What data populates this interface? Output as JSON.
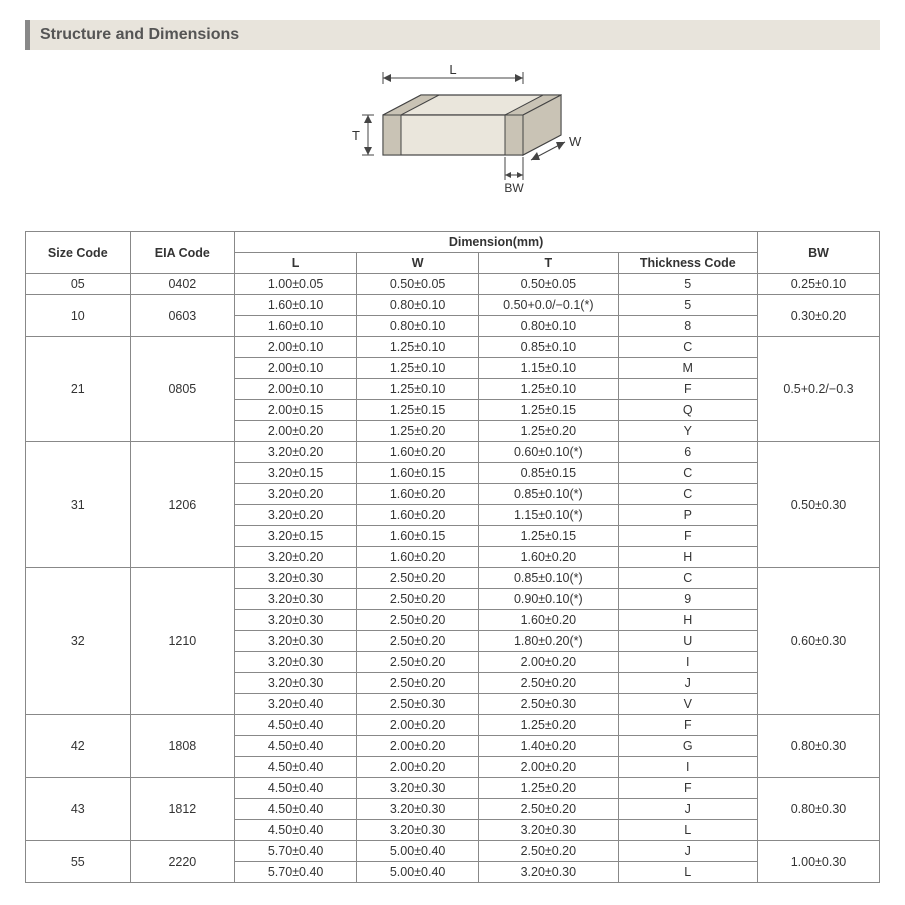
{
  "title": "Structure and Dimensions",
  "diagram": {
    "labels": {
      "L": "L",
      "W": "W",
      "T": "T",
      "BW": "BW"
    },
    "fill": "#eae6dc",
    "stroke": "#444",
    "endBandFill": "#c9c3b5"
  },
  "table": {
    "headers": {
      "size": "Size Code",
      "eia": "EIA Code",
      "dim": "Dimension(mm)",
      "L": "L",
      "W": "W",
      "T": "T",
      "tc": "Thickness  Code",
      "bw": "BW"
    },
    "groups": [
      {
        "size": "05",
        "eia": "0402",
        "bw": "0.25±0.10",
        "rows": [
          {
            "L": "1.00±0.05",
            "W": "0.50±0.05",
            "T": "0.50±0.05",
            "tc": "5"
          }
        ]
      },
      {
        "size": "10",
        "eia": "0603",
        "bw": "0.30±0.20",
        "rows": [
          {
            "L": "1.60±0.10",
            "W": "0.80±0.10",
            "T": "0.50+0.0/−0.1(*)",
            "tc": "5"
          },
          {
            "L": "1.60±0.10",
            "W": "0.80±0.10",
            "T": "0.80±0.10",
            "tc": "8"
          }
        ]
      },
      {
        "size": "21",
        "eia": "0805",
        "bw": "0.5+0.2/−0.3",
        "rows": [
          {
            "L": "2.00±0.10",
            "W": "1.25±0.10",
            "T": "0.85±0.10",
            "tc": "C"
          },
          {
            "L": "2.00±0.10",
            "W": "1.25±0.10",
            "T": "1.15±0.10",
            "tc": "M"
          },
          {
            "L": "2.00±0.10",
            "W": "1.25±0.10",
            "T": "1.25±0.10",
            "tc": "F"
          },
          {
            "L": "2.00±0.15",
            "W": "1.25±0.15",
            "T": "1.25±0.15",
            "tc": "Q"
          },
          {
            "L": "2.00±0.20",
            "W": "1.25±0.20",
            "T": "1.25±0.20",
            "tc": "Y"
          }
        ]
      },
      {
        "size": "31",
        "eia": "1206",
        "bw": "0.50±0.30",
        "rows": [
          {
            "L": "3.20±0.20",
            "W": "1.60±0.20",
            "T": "0.60±0.10(*)",
            "tc": "6"
          },
          {
            "L": "3.20±0.15",
            "W": "1.60±0.15",
            "T": "0.85±0.15",
            "tc": "C"
          },
          {
            "L": "3.20±0.20",
            "W": "1.60±0.20",
            "T": "0.85±0.10(*)",
            "tc": "C"
          },
          {
            "L": "3.20±0.20",
            "W": "1.60±0.20",
            "T": "1.15±0.10(*)",
            "tc": "P"
          },
          {
            "L": "3.20±0.15",
            "W": "1.60±0.15",
            "T": "1.25±0.15",
            "tc": "F"
          },
          {
            "L": "3.20±0.20",
            "W": "1.60±0.20",
            "T": "1.60±0.20",
            "tc": "H"
          }
        ]
      },
      {
        "size": "32",
        "eia": "1210",
        "bw": "0.60±0.30",
        "rows": [
          {
            "L": "3.20±0.30",
            "W": "2.50±0.20",
            "T": "0.85±0.10(*)",
            "tc": "C"
          },
          {
            "L": "3.20±0.30",
            "W": "2.50±0.20",
            "T": "0.90±0.10(*)",
            "tc": "9"
          },
          {
            "L": "3.20±0.30",
            "W": "2.50±0.20",
            "T": "1.60±0.20",
            "tc": "H"
          },
          {
            "L": "3.20±0.30",
            "W": "2.50±0.20",
            "T": "1.80±0.20(*)",
            "tc": "U"
          },
          {
            "L": "3.20±0.30",
            "W": "2.50±0.20",
            "T": "2.00±0.20",
            "tc": "I"
          },
          {
            "L": "3.20±0.30",
            "W": "2.50±0.20",
            "T": "2.50±0.20",
            "tc": "J"
          },
          {
            "L": "3.20±0.40",
            "W": "2.50±0.30",
            "T": "2.50±0.30",
            "tc": "V"
          }
        ]
      },
      {
        "size": "42",
        "eia": "1808",
        "bw": "0.80±0.30",
        "rows": [
          {
            "L": "4.50±0.40",
            "W": "2.00±0.20",
            "T": "1.25±0.20",
            "tc": "F"
          },
          {
            "L": "4.50±0.40",
            "W": "2.00±0.20",
            "T": "1.40±0.20",
            "tc": "G"
          },
          {
            "L": "4.50±0.40",
            "W": "2.00±0.20",
            "T": "2.00±0.20",
            "tc": "I"
          }
        ]
      },
      {
        "size": "43",
        "eia": "1812",
        "bw": "0.80±0.30",
        "rows": [
          {
            "L": "4.50±0.40",
            "W": "3.20±0.30",
            "T": "1.25±0.20",
            "tc": "F"
          },
          {
            "L": "4.50±0.40",
            "W": "3.20±0.30",
            "T": "2.50±0.20",
            "tc": "J"
          },
          {
            "L": "4.50±0.40",
            "W": "3.20±0.30",
            "T": "3.20±0.30",
            "tc": "L"
          }
        ]
      },
      {
        "size": "55",
        "eia": "2220",
        "bw": "1.00±0.30",
        "rows": [
          {
            "L": "5.70±0.40",
            "W": "5.00±0.40",
            "T": "2.50±0.20",
            "tc": "J"
          },
          {
            "L": "5.70±0.40",
            "W": "5.00±0.40",
            "T": "3.20±0.30",
            "tc": "L"
          }
        ]
      }
    ]
  }
}
